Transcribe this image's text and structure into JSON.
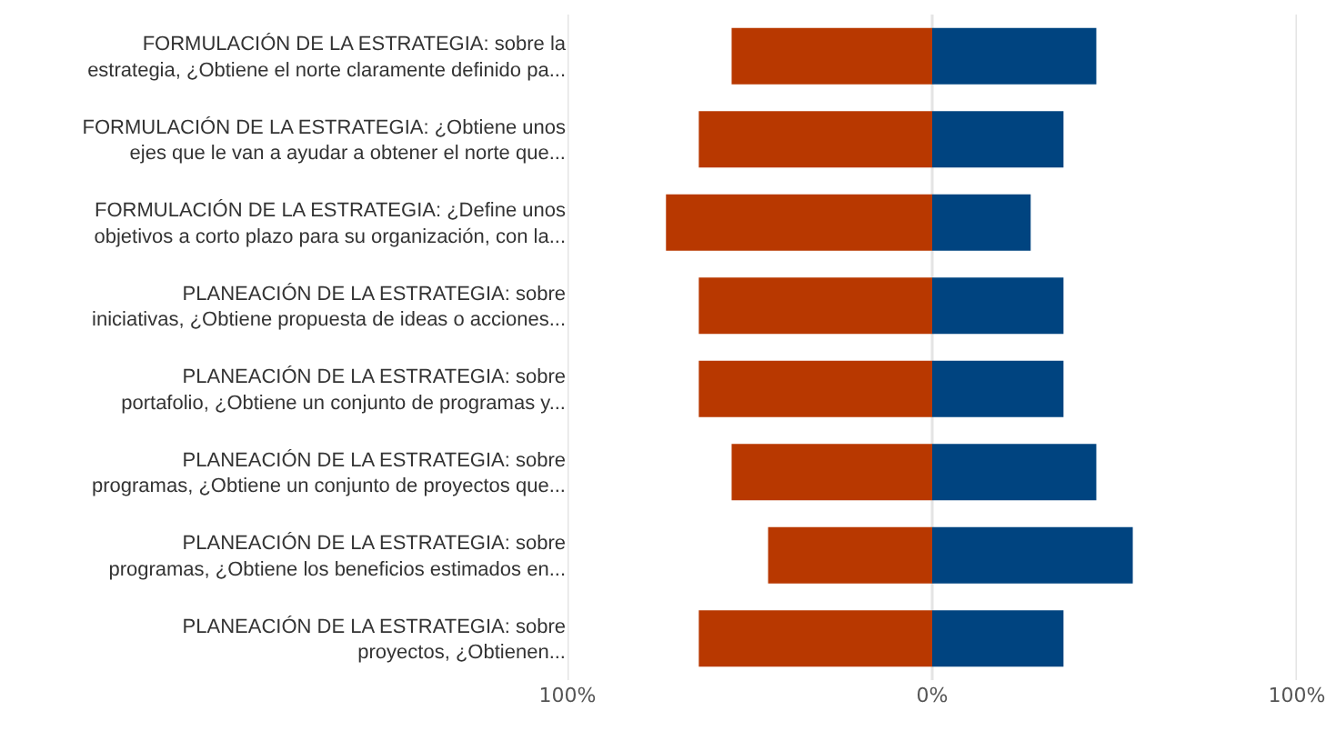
{
  "chart_data": {
    "type": "bar",
    "orientation": "horizontal",
    "stacked": true,
    "categories": [
      "FORMULACIÓN DE LA ESTRATEGIA: sobre la\nestrategia, ¿Obtiene el norte claramente definido pa...",
      "FORMULACIÓN DE LA ESTRATEGIA: ¿Obtiene unos\nejes que le van a ayudar a obtener el norte que...",
      "FORMULACIÓN DE LA ESTRATEGIA: ¿Define unos\nobjetivos a corto plazo para su organización, con la...",
      "PLANEACIÓN DE LA ESTRATEGIA: sobre\niniciativas, ¿Obtiene propuesta de ideas o acciones...",
      "PLANEACIÓN DE LA ESTRATEGIA: sobre\nportafolio, ¿Obtiene un conjunto de programas y...",
      "PLANEACIÓN DE LA ESTRATEGIA: sobre\nprogramas, ¿Obtiene un conjunto de proyectos que...",
      "PLANEACIÓN DE LA ESTRATEGIA: sobre\nprogramas, ¿Obtiene los beneficios estimados en...",
      "PLANEACIÓN DE LA ESTRATEGIA: sobre\nproyectos, ¿Obtienen..."
    ],
    "series": [
      {
        "color": "#b83800",
        "values": [
          -55,
          -64,
          -73,
          -64,
          -64,
          -55,
          -45,
          -64
        ]
      },
      {
        "color": "#004480",
        "values": [
          45,
          36,
          27,
          36,
          36,
          45,
          55,
          36
        ]
      }
    ],
    "xlim": [
      -100,
      100
    ],
    "xticks": [
      {
        "value": -100,
        "label": "100%"
      },
      {
        "value": 0,
        "label": "0%"
      },
      {
        "value": 100,
        "label": "100%"
      }
    ],
    "grid": "x"
  }
}
